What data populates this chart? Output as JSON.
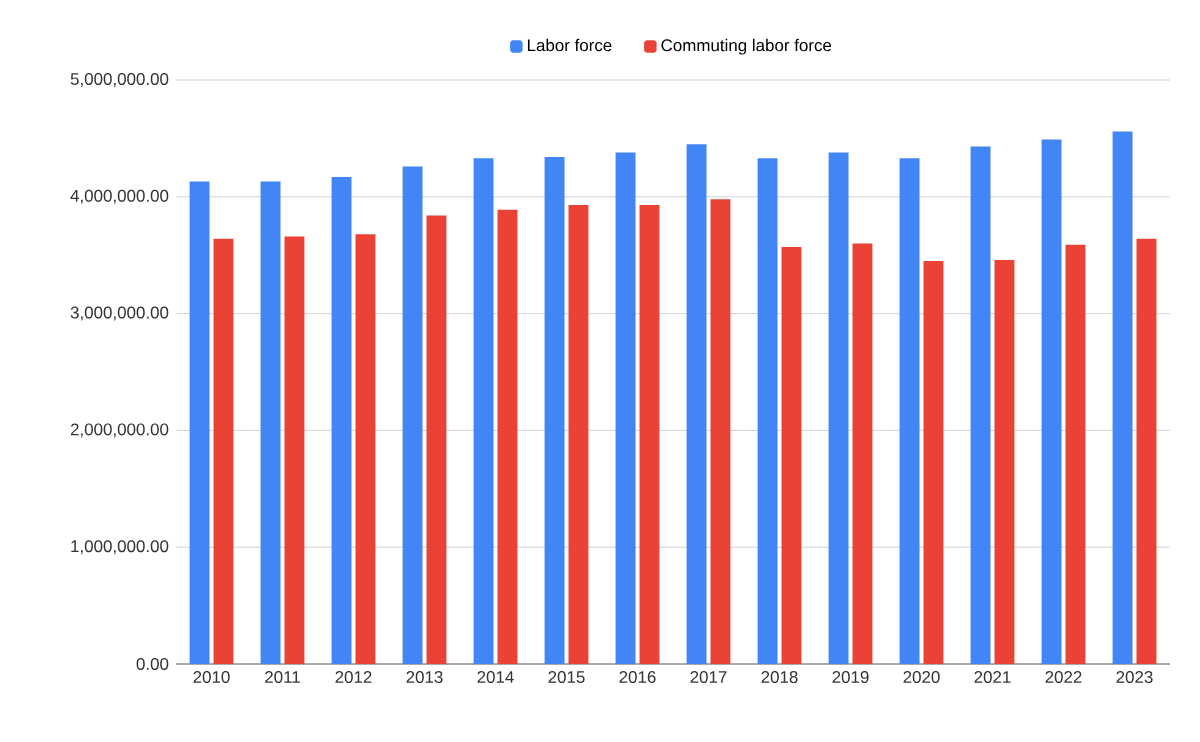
{
  "chart_data": {
    "type": "bar",
    "categories": [
      "2010",
      "2011",
      "2012",
      "2013",
      "2014",
      "2015",
      "2016",
      "2017",
      "2018",
      "2019",
      "2020",
      "2021",
      "2022",
      "2023"
    ],
    "series": [
      {
        "name": "Labor force",
        "color": "#4285f4",
        "values": [
          4130000,
          4130000,
          4170000,
          4260000,
          4330000,
          4340000,
          4380000,
          4450000,
          4330000,
          4380000,
          4330000,
          4430000,
          4490000,
          4560000
        ]
      },
      {
        "name": "Commuting labor force",
        "color": "#ea4335",
        "values": [
          3640000,
          3660000,
          3680000,
          3840000,
          3890000,
          3930000,
          3930000,
          3980000,
          3570000,
          3600000,
          3450000,
          3460000,
          3590000,
          3640000
        ]
      }
    ],
    "ylim": [
      0,
      5000000
    ],
    "yticks": [
      {
        "value": 0,
        "label": "0.00"
      },
      {
        "value": 1000000,
        "label": "1,000,000.00"
      },
      {
        "value": 2000000,
        "label": "2,000,000.00"
      },
      {
        "value": 3000000,
        "label": "3,000,000.00"
      },
      {
        "value": 4000000,
        "label": "4,000,000.00"
      },
      {
        "value": 5000000,
        "label": "5,000,000.00"
      }
    ],
    "grid": "y",
    "legend": "top"
  }
}
